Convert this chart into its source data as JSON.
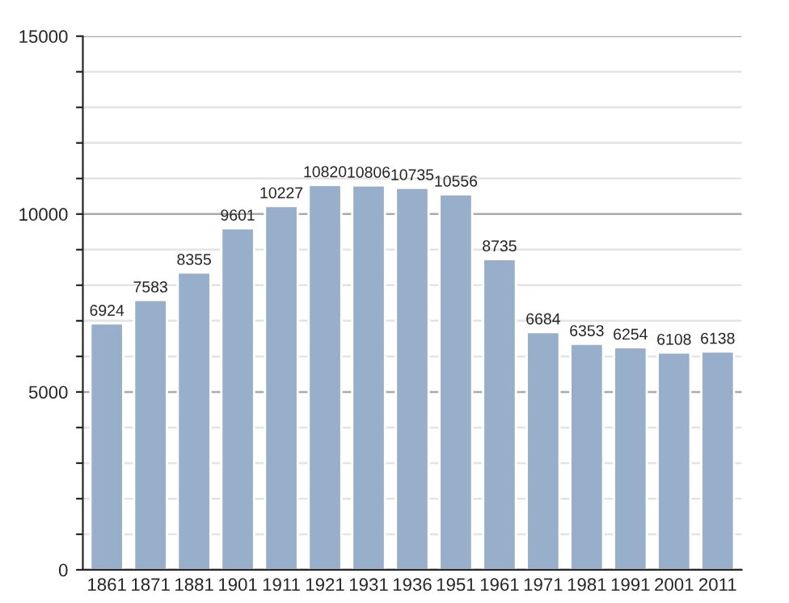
{
  "chart_data": {
    "type": "bar",
    "categories": [
      "1861",
      "1871",
      "1881",
      "1901",
      "1911",
      "1921",
      "1931",
      "1936",
      "1951",
      "1961",
      "1971",
      "1981",
      "1991",
      "2001",
      "2011"
    ],
    "values": [
      6924,
      7583,
      8355,
      9601,
      10227,
      10820,
      10806,
      10735,
      10556,
      8735,
      6684,
      6353,
      6254,
      6108,
      6138
    ],
    "color": "#97afcb",
    "ylim": [
      0,
      15000
    ],
    "yticks": [
      0,
      {
        "value": 1000,
        "label": null
      },
      {
        "value": 2000,
        "label": null
      },
      {
        "value": 3000,
        "label": null
      },
      {
        "value": 4000,
        "label": null
      },
      5000,
      {
        "value": 6000,
        "label": null
      },
      {
        "value": 7000,
        "label": null
      },
      {
        "value": 8000,
        "label": null
      },
      {
        "value": 9000,
        "label": null
      },
      10000,
      {
        "value": 11000,
        "label": null
      },
      {
        "value": 12000,
        "label": null
      },
      {
        "value": 13000,
        "label": null
      },
      {
        "value": 14000,
        "label": null
      },
      15000
    ],
    "grid": "y",
    "data_labels": true
  }
}
